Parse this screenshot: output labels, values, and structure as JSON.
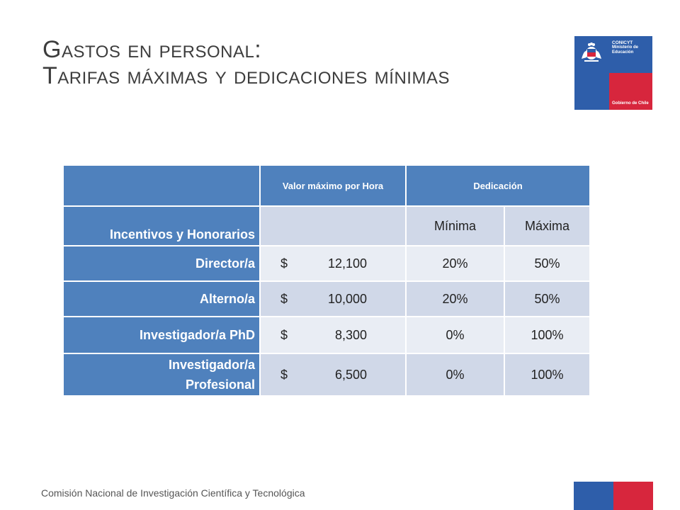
{
  "title": {
    "line1": "Gastos en personal:",
    "line2": "Tarifas máximas y dedicaciones mínimas"
  },
  "logo": {
    "org_name": "CONICYT",
    "ministry_line1": "Ministerio de",
    "ministry_line2": "Educación",
    "government": "Gobierno de Chile",
    "emblem": "chile-coat-of-arms-icon",
    "colors": {
      "blue": "#2e5eaa",
      "red": "#d7263d"
    }
  },
  "table": {
    "header": {
      "valor": "Valor máximo por Hora",
      "dedicacion": "Dedicación"
    },
    "subheader": {
      "section_label": "Incentivos y Honorarios",
      "minima": "Mínima",
      "maxima": "Máxima"
    },
    "rows": [
      {
        "label": "Director/a",
        "currency": "$",
        "valor": "12,100",
        "minima": "20%",
        "maxima": "50%"
      },
      {
        "label": "Alterno/a",
        "currency": "$",
        "valor": "10,000",
        "minima": "20%",
        "maxima": "50%"
      },
      {
        "label": "Investigador/a PhD",
        "currency": "$",
        "valor": "8,300",
        "minima": "0%",
        "maxima": "100%"
      },
      {
        "label": "Investigador/a Profesional",
        "currency": "$",
        "valor": "6,500",
        "minima": "0%",
        "maxima": "100%"
      }
    ],
    "colors": {
      "header": "#4f81bd",
      "band_dark": "#d0d8e8",
      "band_light": "#e9edf4"
    }
  },
  "footer": {
    "text": "Comisión Nacional de Investigación Científica y Tecnológica"
  }
}
